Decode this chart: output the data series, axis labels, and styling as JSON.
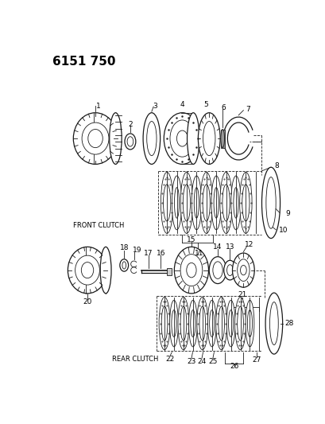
{
  "title": "6151 750",
  "bg_color": "#ffffff",
  "line_color": "#1a1a1a",
  "fig_width": 4.1,
  "fig_height": 5.33,
  "front_clutch_label": "FRONT CLUTCH",
  "rear_clutch_label": "REAR CLUTCH"
}
